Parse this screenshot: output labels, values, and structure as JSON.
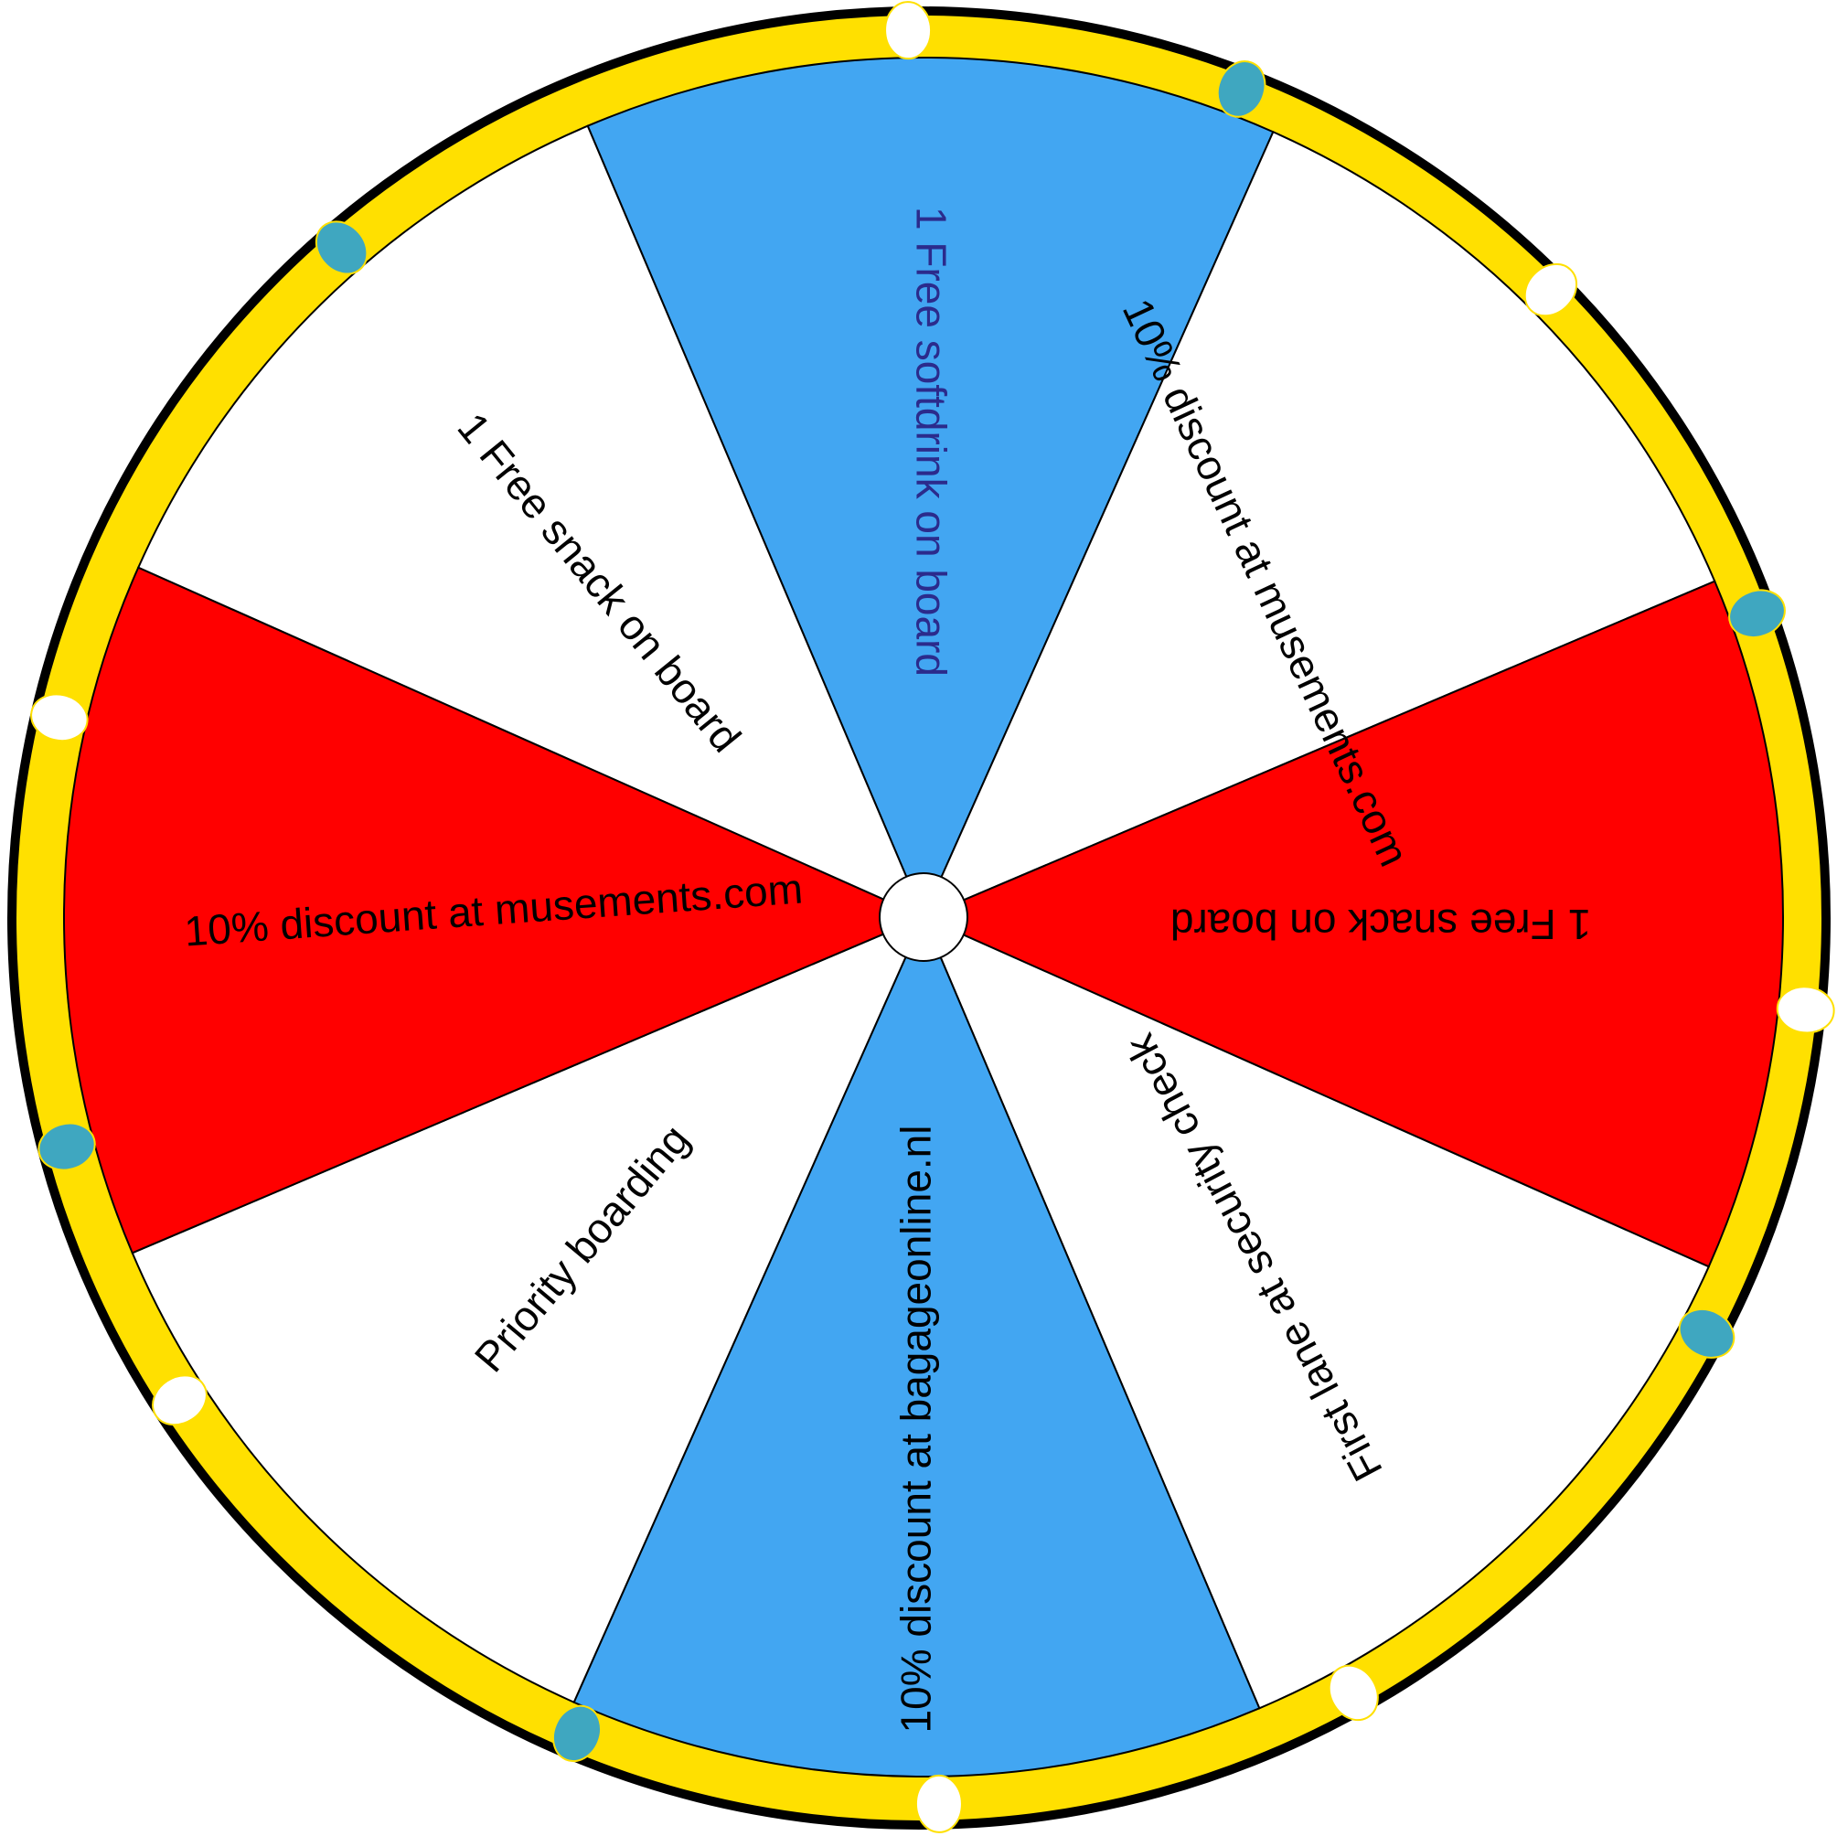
{
  "wheel": {
    "segments": [
      {
        "label": "1 Free softdrink on board",
        "color": "#42a6f2",
        "text_color": "#2b2b8c"
      },
      {
        "label": "10% discount at musements.com",
        "color": "#ffffff",
        "text_color": "#000000"
      },
      {
        "label": "1 Free snack on board",
        "color": "#ff0000",
        "text_color": "#000000"
      },
      {
        "label": "First lane at security check",
        "color": "#ffffff",
        "text_color": "#000000"
      },
      {
        "label": "10%  discount at bagageonline.nl",
        "color": "#42a6f2",
        "text_color": "#000000"
      },
      {
        "label": "Priority boarding",
        "color": "#ffffff",
        "text_color": "#000000"
      },
      {
        "label": "10% discount at musements.com",
        "color": "#ff0000",
        "text_color": "#000000"
      },
      {
        "label": "1 Free snack on board",
        "color": "#ffffff",
        "text_color": "#000000"
      }
    ],
    "rim_color": "#ffe000",
    "outline_color": "#000000",
    "light_colors": [
      "#ffffff",
      "#3fa7c0"
    ]
  }
}
